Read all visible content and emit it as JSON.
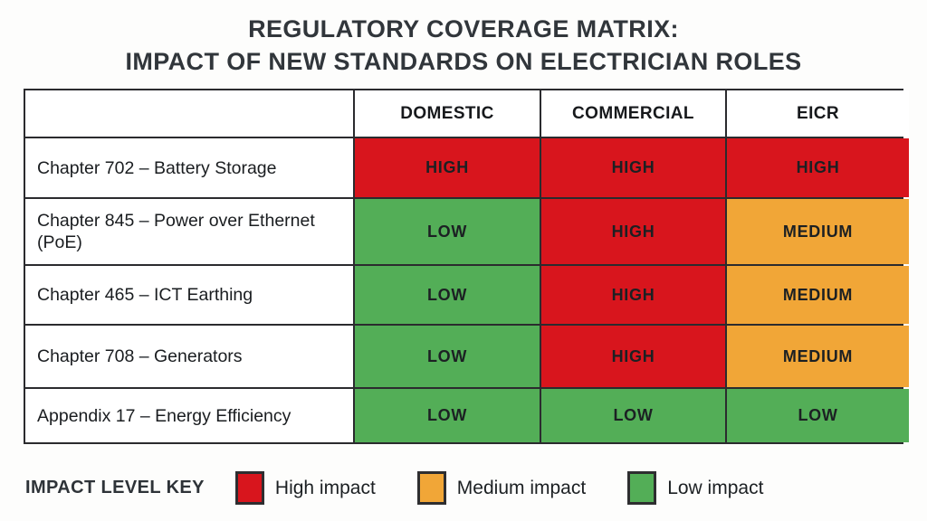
{
  "title": {
    "line1": "REGULATORY COVERAGE MATRIX:",
    "line2": "IMPACT OF NEW STANDARDS ON ELECTRICIAN ROLES"
  },
  "table": {
    "columns": [
      "DOMESTIC",
      "COMMERCIAL",
      "EICR"
    ],
    "rows": [
      {
        "label": "Chapter 702 – Battery Storage",
        "values": [
          "HIGH",
          "HIGH",
          "HIGH"
        ],
        "levels": [
          "high",
          "high",
          "high"
        ]
      },
      {
        "label": "Chapter 845 – Power over Ethernet (PoE)",
        "values": [
          "LOW",
          "HIGH",
          "MEDIUM"
        ],
        "levels": [
          "low",
          "high",
          "medium"
        ]
      },
      {
        "label": "Chapter 465 – ICT Earthing",
        "values": [
          "LOW",
          "HIGH",
          "MEDIUM"
        ],
        "levels": [
          "low",
          "high",
          "medium"
        ]
      },
      {
        "label": "Chapter 708 – Generators",
        "values": [
          "LOW",
          "HIGH",
          "MEDIUM"
        ],
        "levels": [
          "low",
          "high",
          "medium"
        ]
      },
      {
        "label": "Appendix 17 – Energy Efficiency",
        "values": [
          "LOW",
          "LOW",
          "LOW"
        ],
        "levels": [
          "low",
          "low",
          "low"
        ]
      }
    ]
  },
  "legend": {
    "title": "IMPACT LEVEL KEY",
    "items": [
      {
        "label": "High impact",
        "level": "high"
      },
      {
        "label": "Medium impact",
        "level": "medium"
      },
      {
        "label": "Low impact",
        "level": "low"
      }
    ]
  },
  "colors": {
    "high": "#d8151d",
    "medium": "#f1a637",
    "low": "#53ae57",
    "high_text": "#fef6f6",
    "dark_text": "#1c2023",
    "border": "#2b2b2e",
    "title_text": "#31363b"
  },
  "chart_data": {
    "type": "heatmap",
    "title": "REGULATORY COVERAGE MATRIX: IMPACT OF NEW STANDARDS ON ELECTRICIAN ROLES",
    "columns": [
      "DOMESTIC",
      "COMMERCIAL",
      "EICR"
    ],
    "rows": [
      "Chapter 702 – Battery Storage",
      "Chapter 845 – Power over Ethernet (PoE)",
      "Chapter 465 – ICT Earthing",
      "Chapter 708 – Generators",
      "Appendix 17 – Energy Efficiency"
    ],
    "values": [
      [
        "HIGH",
        "HIGH",
        "HIGH"
      ],
      [
        "LOW",
        "HIGH",
        "MEDIUM"
      ],
      [
        "LOW",
        "HIGH",
        "MEDIUM"
      ],
      [
        "LOW",
        "HIGH",
        "MEDIUM"
      ],
      [
        "LOW",
        "LOW",
        "LOW"
      ]
    ],
    "value_scale": {
      "HIGH": 3,
      "MEDIUM": 2,
      "LOW": 1
    },
    "legend_entries": [
      "High impact",
      "Medium impact",
      "Low impact"
    ],
    "legend_position": "bottom",
    "grid": true
  }
}
